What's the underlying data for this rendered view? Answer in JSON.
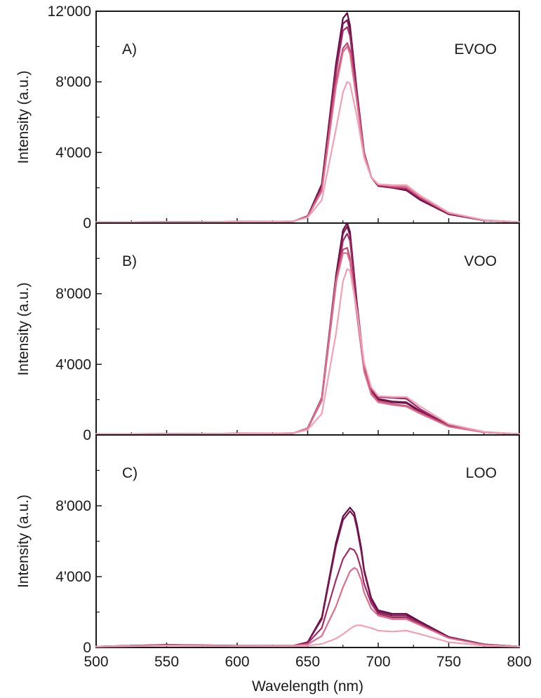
{
  "chart_data": [
    {
      "type": "line",
      "panel_label": "A)",
      "oil_label": "EVOO",
      "ylabel": "Intensity (a.u.)",
      "xlabel": "",
      "xlim": [
        500,
        800
      ],
      "ylim": [
        0,
        12000
      ],
      "yticks": [
        {
          "value": 0,
          "label": "0"
        },
        {
          "value": 4000,
          "label": "4'000"
        },
        {
          "value": 8000,
          "label": "8'000"
        },
        {
          "value": 12000,
          "label": "12'000"
        }
      ],
      "xticks": [],
      "x": [
        500,
        550,
        600,
        640,
        650,
        660,
        670,
        675,
        678,
        680,
        685,
        690,
        695,
        700,
        710,
        720,
        730,
        750,
        775,
        800
      ],
      "series": [
        {
          "color": "#5e0a3f",
          "values": [
            50,
            60,
            80,
            100,
            400,
            2200,
            9000,
            11600,
            11900,
            11200,
            7400,
            4000,
            2600,
            2100,
            2000,
            1850,
            1300,
            500,
            150,
            50
          ]
        },
        {
          "color": "#7d1452",
          "values": [
            50,
            60,
            80,
            100,
            390,
            2100,
            8800,
            11300,
            11500,
            10900,
            7300,
            4000,
            2600,
            2100,
            2000,
            1900,
            1350,
            520,
            150,
            50
          ]
        },
        {
          "color": "#a12a62",
          "values": [
            50,
            60,
            80,
            100,
            380,
            2000,
            8500,
            10900,
            11100,
            10600,
            7200,
            4000,
            2600,
            2150,
            2050,
            1950,
            1400,
            540,
            160,
            50
          ]
        },
        {
          "color": "#c4476f",
          "values": [
            50,
            60,
            80,
            100,
            370,
            1900,
            8000,
            9900,
            10200,
            9800,
            6900,
            3900,
            2600,
            2150,
            2050,
            2000,
            1450,
            560,
            160,
            50
          ]
        },
        {
          "color": "#dd6d8c",
          "values": [
            50,
            60,
            80,
            100,
            360,
            1800,
            7700,
            9700,
            10000,
            9600,
            6800,
            3900,
            2600,
            2200,
            2100,
            2050,
            1500,
            580,
            170,
            50
          ]
        },
        {
          "color": "#f0a1b6",
          "values": [
            50,
            60,
            80,
            100,
            320,
            1300,
            5300,
            7400,
            8000,
            7900,
            6000,
            3700,
            2600,
            2200,
            2150,
            2150,
            1550,
            600,
            170,
            50
          ]
        }
      ]
    },
    {
      "type": "line",
      "panel_label": "B)",
      "oil_label": "VOO",
      "ylabel": "Intensity (a.u.)",
      "xlabel": "",
      "xlim": [
        500,
        800
      ],
      "ylim": [
        0,
        12000
      ],
      "yticks": [
        {
          "value": 0,
          "label": "0"
        },
        {
          "value": 4000,
          "label": "4'000"
        },
        {
          "value": 8000,
          "label": "8'000"
        },
        {
          "value": 12000,
          "label": ""
        }
      ],
      "xticks": [],
      "x": [
        500,
        550,
        600,
        640,
        650,
        660,
        670,
        675,
        678,
        680,
        685,
        690,
        695,
        700,
        710,
        720,
        730,
        750,
        775,
        800
      ],
      "series": [
        {
          "color": "#5e0a3f",
          "values": [
            50,
            60,
            80,
            100,
            380,
            2100,
            9000,
            11600,
            12000,
            11500,
            7400,
            3900,
            2500,
            2000,
            1850,
            1800,
            1300,
            500,
            150,
            50
          ]
        },
        {
          "color": "#7d1452",
          "values": [
            50,
            60,
            80,
            100,
            370,
            2000,
            8800,
            11400,
            11800,
            11300,
            7300,
            3900,
            2500,
            2050,
            1900,
            1850,
            1350,
            520,
            150,
            50
          ]
        },
        {
          "color": "#a12a62",
          "values": [
            50,
            60,
            80,
            100,
            360,
            1950,
            8500,
            11000,
            11400,
            11000,
            7200,
            4000,
            2600,
            2150,
            2100,
            2050,
            1450,
            550,
            160,
            50
          ]
        },
        {
          "color": "#c4476f",
          "values": [
            50,
            60,
            80,
            100,
            380,
            2100,
            8800,
            10500,
            10600,
            10000,
            6800,
            3700,
            2400,
            1900,
            1750,
            1650,
            1250,
            480,
            150,
            50
          ]
        },
        {
          "color": "#dd6d8c",
          "values": [
            50,
            60,
            80,
            100,
            370,
            2000,
            8600,
            10300,
            10300,
            9800,
            6700,
            3600,
            2300,
            1850,
            1700,
            1600,
            1200,
            470,
            150,
            50
          ]
        },
        {
          "color": "#f0a1b6",
          "values": [
            50,
            60,
            80,
            100,
            300,
            1200,
            5700,
            8700,
            9400,
            9300,
            7000,
            4100,
            2700,
            2200,
            2150,
            2150,
            1600,
            620,
            180,
            50
          ]
        }
      ]
    },
    {
      "type": "line",
      "panel_label": "C)",
      "oil_label": "LOO",
      "ylabel": "Intensity (a.u.)",
      "xlabel": "Wavelength (nm)",
      "xlim": [
        500,
        800
      ],
      "ylim": [
        0,
        12000
      ],
      "yticks": [
        {
          "value": 0,
          "label": "0"
        },
        {
          "value": 4000,
          "label": "4'000"
        },
        {
          "value": 8000,
          "label": "8'000"
        },
        {
          "value": 12000,
          "label": ""
        }
      ],
      "xticks": [
        {
          "value": 500,
          "label": "500"
        },
        {
          "value": 550,
          "label": "550"
        },
        {
          "value": 600,
          "label": "600"
        },
        {
          "value": 650,
          "label": "650"
        },
        {
          "value": 700,
          "label": "700"
        },
        {
          "value": 750,
          "label": "750"
        },
        {
          "value": 800,
          "label": "800"
        }
      ],
      "x": [
        500,
        550,
        600,
        640,
        650,
        660,
        670,
        675,
        680,
        683,
        685,
        688,
        690,
        695,
        700,
        710,
        720,
        730,
        750,
        775,
        800
      ],
      "series": [
        {
          "color": "#5e0a3f",
          "values": [
            50,
            150,
            100,
            100,
            300,
            1700,
            5900,
            7400,
            7900,
            7600,
            6900,
            5600,
            4400,
            2800,
            2100,
            1900,
            1900,
            1450,
            600,
            180,
            50
          ]
        },
        {
          "color": "#7d1452",
          "values": [
            50,
            150,
            100,
            100,
            300,
            1600,
            5700,
            7200,
            7700,
            7400,
            6700,
            5400,
            4300,
            2700,
            2000,
            1800,
            1800,
            1400,
            580,
            170,
            50
          ]
        },
        {
          "color": "#a12a62",
          "values": [
            50,
            130,
            90,
            100,
            250,
            1100,
            3800,
            5000,
            5600,
            5500,
            5200,
            4400,
            3600,
            2500,
            1900,
            1700,
            1700,
            1300,
            550,
            160,
            50
          ]
        },
        {
          "color": "#dd6d8c",
          "values": [
            50,
            120,
            90,
            100,
            180,
            650,
            2300,
            3400,
            4300,
            4500,
            4400,
            3800,
            3100,
            2200,
            1800,
            1600,
            1600,
            1250,
            530,
            150,
            50
          ]
        },
        {
          "color": "#f0a1b6",
          "values": [
            50,
            100,
            80,
            80,
            100,
            200,
            500,
            750,
            1050,
            1200,
            1250,
            1250,
            1200,
            1100,
            950,
            900,
            950,
            750,
            300,
            100,
            50
          ]
        }
      ]
    }
  ]
}
